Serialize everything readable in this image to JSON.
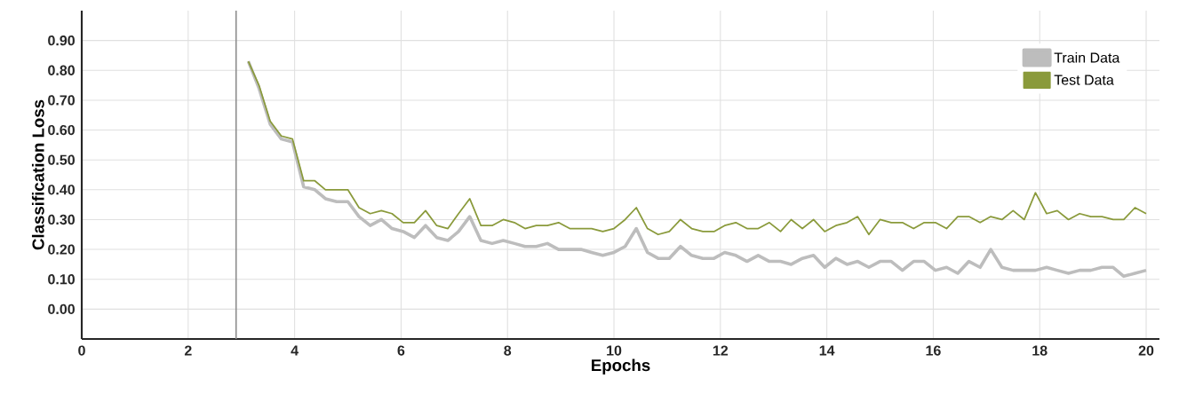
{
  "chart_data": {
    "type": "line",
    "xlabel": "Epochs",
    "ylabel": "Classification Loss",
    "x": [
      3.13,
      3.33,
      3.54,
      3.75,
      3.96,
      4.17,
      4.38,
      4.58,
      4.79,
      5.0,
      5.21,
      5.42,
      5.63,
      5.83,
      6.04,
      6.25,
      6.46,
      6.67,
      6.88,
      7.08,
      7.29,
      7.5,
      7.71,
      7.92,
      8.13,
      8.33,
      8.54,
      8.75,
      8.96,
      9.17,
      9.38,
      9.58,
      9.79,
      10.0,
      10.21,
      10.42,
      10.63,
      10.83,
      11.04,
      11.25,
      11.46,
      11.67,
      11.88,
      12.08,
      12.29,
      12.5,
      12.71,
      12.92,
      13.13,
      13.33,
      13.54,
      13.75,
      13.96,
      14.17,
      14.38,
      14.58,
      14.79,
      15.0,
      15.21,
      15.42,
      15.63,
      15.83,
      16.04,
      16.25,
      16.46,
      16.67,
      16.88,
      17.08,
      17.29,
      17.5,
      17.71,
      17.92,
      18.13,
      18.33,
      18.54,
      18.75,
      18.96,
      19.17,
      19.38,
      19.58,
      19.79,
      20.0
    ],
    "series": [
      {
        "name": "Train Data",
        "color": "#bdbdbd",
        "values": [
          0.83,
          0.74,
          0.62,
          0.57,
          0.56,
          0.41,
          0.4,
          0.37,
          0.36,
          0.36,
          0.31,
          0.28,
          0.3,
          0.27,
          0.26,
          0.24,
          0.28,
          0.24,
          0.23,
          0.26,
          0.31,
          0.23,
          0.22,
          0.23,
          0.22,
          0.21,
          0.21,
          0.22,
          0.2,
          0.2,
          0.2,
          0.19,
          0.18,
          0.19,
          0.21,
          0.27,
          0.19,
          0.17,
          0.17,
          0.21,
          0.18,
          0.17,
          0.17,
          0.19,
          0.18,
          0.16,
          0.18,
          0.16,
          0.16,
          0.15,
          0.17,
          0.18,
          0.14,
          0.17,
          0.15,
          0.16,
          0.14,
          0.16,
          0.16,
          0.13,
          0.16,
          0.16,
          0.13,
          0.14,
          0.12,
          0.16,
          0.14,
          0.2,
          0.14,
          0.13,
          0.13,
          0.13,
          0.14,
          0.13,
          0.12,
          0.13,
          0.13,
          0.14,
          0.14,
          0.11,
          0.12,
          0.13
        ]
      },
      {
        "name": "Test Data",
        "color": "#8a9a3b",
        "values": [
          0.83,
          0.75,
          0.63,
          0.58,
          0.57,
          0.43,
          0.43,
          0.4,
          0.4,
          0.4,
          0.34,
          0.32,
          0.33,
          0.32,
          0.29,
          0.29,
          0.33,
          0.28,
          0.27,
          0.32,
          0.37,
          0.28,
          0.28,
          0.3,
          0.29,
          0.27,
          0.28,
          0.28,
          0.29,
          0.27,
          0.27,
          0.27,
          0.26,
          0.27,
          0.3,
          0.34,
          0.27,
          0.25,
          0.26,
          0.3,
          0.27,
          0.26,
          0.26,
          0.28,
          0.29,
          0.27,
          0.27,
          0.29,
          0.26,
          0.3,
          0.27,
          0.3,
          0.26,
          0.28,
          0.29,
          0.31,
          0.25,
          0.3,
          0.29,
          0.29,
          0.27,
          0.29,
          0.29,
          0.27,
          0.31,
          0.31,
          0.29,
          0.31,
          0.3,
          0.33,
          0.3,
          0.39,
          0.32,
          0.33,
          0.3,
          0.32,
          0.31,
          0.31,
          0.3,
          0.3,
          0.34,
          0.32
        ]
      }
    ],
    "xlim": [
      0,
      20.25
    ],
    "ylim": [
      -0.1,
      1.0
    ],
    "xticks": [
      0,
      2,
      4,
      6,
      8,
      10,
      12,
      14,
      16,
      18,
      20
    ],
    "yticks": [
      {
        "value": 0,
        "label": "0.00"
      },
      {
        "value": 0.1,
        "label": "0.10"
      },
      {
        "value": 0.2,
        "label": "0.20"
      },
      {
        "value": 0.3,
        "label": "0.30"
      },
      {
        "value": 0.4,
        "label": "0.40"
      },
      {
        "value": 0.5,
        "label": "0.50"
      },
      {
        "value": 0.6,
        "label": "0.60"
      },
      {
        "value": 0.7,
        "label": "0.70"
      },
      {
        "value": 0.8,
        "label": "0.80"
      },
      {
        "value": 0.9,
        "label": "0.90"
      }
    ],
    "ref_lines": [
      {
        "axis": "x",
        "value": 2.9,
        "color": "#8c8c8c"
      }
    ],
    "grid": true,
    "legend": "top right",
    "line_style": "solid"
  }
}
